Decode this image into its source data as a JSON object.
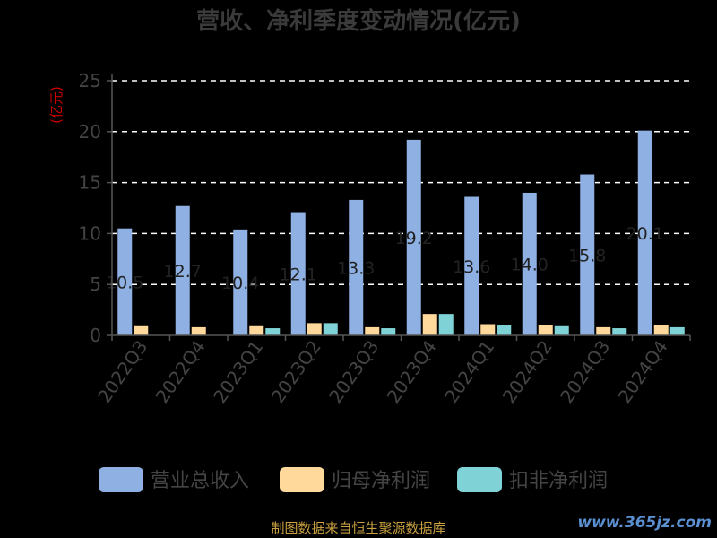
{
  "chart_data": {
    "type": "bar",
    "title": "营收、净利季度变动情况(亿元)",
    "ylabel": "(亿元)",
    "ylim": [
      0,
      25
    ],
    "yticks": [
      0,
      5,
      10,
      15,
      20,
      25
    ],
    "grid": true,
    "legend_position": "bottom",
    "categories": [
      "2022Q3",
      "2022Q4",
      "2023Q1",
      "2023Q2",
      "2023Q3",
      "2023Q4",
      "2024Q1",
      "2024Q2",
      "2024Q3",
      "2024Q4"
    ],
    "series": [
      {
        "name": "营业总收入",
        "color": "#8eb0e3",
        "values": [
          10.5,
          12.7,
          10.4,
          12.1,
          13.3,
          19.2,
          13.6,
          14.0,
          15.8,
          20.1
        ]
      },
      {
        "name": "归母净利润",
        "color": "#ffd89b",
        "values": [
          0.9,
          0.8,
          0.9,
          1.2,
          0.8,
          2.1,
          1.1,
          1.0,
          0.8,
          1.0
        ]
      },
      {
        "name": "扣非净利润",
        "color": "#7fd3d6",
        "values": [
          0.0,
          0.0,
          0.7,
          1.2,
          0.7,
          2.1,
          1.0,
          0.9,
          0.7,
          0.8
        ]
      }
    ],
    "data_labels": [
      "10.5",
      "12.7",
      "10.4",
      "12.1",
      "13.3",
      "19.2",
      "13.6",
      "14.0",
      "15.8",
      "20.1"
    ]
  },
  "footer": {
    "source": "制图数据来自恒生聚源数据库",
    "watermark": "www.365jz.com"
  }
}
